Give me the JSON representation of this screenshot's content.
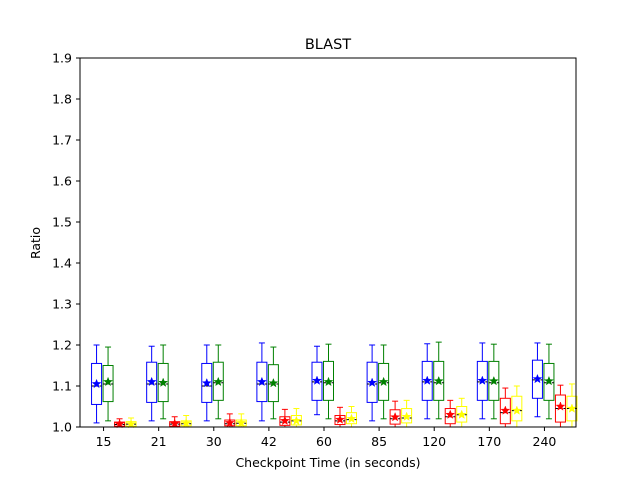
{
  "chart_data": {
    "type": "box",
    "title": "BLAST",
    "xlabel": "Checkpoint Time (in seconds)",
    "ylabel": "Ratio",
    "ylim": [
      1.0,
      1.9
    ],
    "yticks": [
      "1.0",
      "1.1",
      "1.2",
      "1.3",
      "1.4",
      "1.5",
      "1.6",
      "1.7",
      "1.8",
      "1.9"
    ],
    "categories": [
      "15",
      "21",
      "30",
      "42",
      "60",
      "85",
      "120",
      "170",
      "240"
    ],
    "grid": false,
    "legend": "none",
    "series": [
      {
        "color": "#0000ff",
        "boxes": [
          {
            "whislo": 1.01,
            "q1": 1.055,
            "med": 1.1,
            "mean": 1.105,
            "q3": 1.155,
            "whishi": 1.2
          },
          {
            "whislo": 1.015,
            "q1": 1.06,
            "med": 1.105,
            "mean": 1.11,
            "q3": 1.158,
            "whishi": 1.197
          },
          {
            "whislo": 1.015,
            "q1": 1.06,
            "med": 1.1,
            "mean": 1.107,
            "q3": 1.155,
            "whishi": 1.2
          },
          {
            "whislo": 1.015,
            "q1": 1.062,
            "med": 1.105,
            "mean": 1.11,
            "q3": 1.158,
            "whishi": 1.205
          },
          {
            "whislo": 1.03,
            "q1": 1.065,
            "med": 1.11,
            "mean": 1.113,
            "q3": 1.158,
            "whishi": 1.197
          },
          {
            "whislo": 1.015,
            "q1": 1.06,
            "med": 1.105,
            "mean": 1.108,
            "q3": 1.158,
            "whishi": 1.2
          },
          {
            "whislo": 1.02,
            "q1": 1.065,
            "med": 1.11,
            "mean": 1.113,
            "q3": 1.16,
            "whishi": 1.203
          },
          {
            "whislo": 1.02,
            "q1": 1.065,
            "med": 1.11,
            "mean": 1.113,
            "q3": 1.16,
            "whishi": 1.205
          },
          {
            "whislo": 1.025,
            "q1": 1.07,
            "med": 1.115,
            "mean": 1.117,
            "q3": 1.163,
            "whishi": 1.205
          }
        ]
      },
      {
        "color": "#008000",
        "boxes": [
          {
            "whislo": 1.015,
            "q1": 1.062,
            "med": 1.105,
            "mean": 1.11,
            "q3": 1.15,
            "whishi": 1.195
          },
          {
            "whislo": 1.02,
            "q1": 1.062,
            "med": 1.105,
            "mean": 1.108,
            "q3": 1.155,
            "whishi": 1.2
          },
          {
            "whislo": 1.02,
            "q1": 1.065,
            "med": 1.108,
            "mean": 1.11,
            "q3": 1.158,
            "whishi": 1.2
          },
          {
            "whislo": 1.02,
            "q1": 1.062,
            "med": 1.105,
            "mean": 1.107,
            "q3": 1.152,
            "whishi": 1.195
          },
          {
            "whislo": 1.02,
            "q1": 1.065,
            "med": 1.108,
            "mean": 1.11,
            "q3": 1.16,
            "whishi": 1.202
          },
          {
            "whislo": 1.02,
            "q1": 1.065,
            "med": 1.108,
            "mean": 1.11,
            "q3": 1.155,
            "whishi": 1.2
          },
          {
            "whislo": 1.02,
            "q1": 1.065,
            "med": 1.108,
            "mean": 1.112,
            "q3": 1.16,
            "whishi": 1.207
          },
          {
            "whislo": 1.02,
            "q1": 1.065,
            "med": 1.108,
            "mean": 1.112,
            "q3": 1.16,
            "whishi": 1.202
          },
          {
            "whislo": 1.02,
            "q1": 1.065,
            "med": 1.108,
            "mean": 1.112,
            "q3": 1.155,
            "whishi": 1.202
          }
        ]
      },
      {
        "color": "#ff0000",
        "boxes": [
          {
            "whislo": 1.0,
            "q1": 1.002,
            "med": 1.006,
            "mean": 1.007,
            "q3": 1.012,
            "whishi": 1.02
          },
          {
            "whislo": 1.0,
            "q1": 1.002,
            "med": 1.007,
            "mean": 1.008,
            "q3": 1.013,
            "whishi": 1.025
          },
          {
            "whislo": 1.0,
            "q1": 1.003,
            "med": 1.008,
            "mean": 1.01,
            "q3": 1.017,
            "whishi": 1.032
          },
          {
            "whislo": 1.0,
            "q1": 1.004,
            "med": 1.012,
            "mean": 1.015,
            "q3": 1.025,
            "whishi": 1.043
          },
          {
            "whislo": 1.0,
            "q1": 1.006,
            "med": 1.015,
            "mean": 1.018,
            "q3": 1.028,
            "whishi": 1.048
          },
          {
            "whislo": 1.0,
            "q1": 1.007,
            "med": 1.02,
            "mean": 1.024,
            "q3": 1.042,
            "whishi": 1.063
          },
          {
            "whislo": 1.0,
            "q1": 1.008,
            "med": 1.025,
            "mean": 1.03,
            "q3": 1.045,
            "whishi": 1.065
          },
          {
            "whislo": 1.0,
            "q1": 1.008,
            "med": 1.035,
            "mean": 1.04,
            "q3": 1.07,
            "whishi": 1.095
          },
          {
            "whislo": 1.0,
            "q1": 1.012,
            "med": 1.045,
            "mean": 1.05,
            "q3": 1.078,
            "whishi": 1.102
          }
        ]
      },
      {
        "color": "#ffff00",
        "boxes": [
          {
            "whislo": 1.0,
            "q1": 1.002,
            "med": 1.007,
            "mean": 1.007,
            "q3": 1.013,
            "whishi": 1.022
          },
          {
            "whislo": 1.0,
            "q1": 1.003,
            "med": 1.008,
            "mean": 1.009,
            "q3": 1.015,
            "whishi": 1.028
          },
          {
            "whislo": 1.0,
            "q1": 1.003,
            "med": 1.009,
            "mean": 1.01,
            "q3": 1.017,
            "whishi": 1.032
          },
          {
            "whislo": 1.0,
            "q1": 1.005,
            "med": 1.015,
            "mean": 1.015,
            "q3": 1.028,
            "whishi": 1.045
          },
          {
            "whislo": 1.0,
            "q1": 1.008,
            "med": 1.018,
            "mean": 1.02,
            "q3": 1.035,
            "whishi": 1.05
          },
          {
            "whislo": 1.0,
            "q1": 1.01,
            "med": 1.022,
            "mean": 1.025,
            "q3": 1.045,
            "whishi": 1.065
          },
          {
            "whislo": 1.0,
            "q1": 1.012,
            "med": 1.03,
            "mean": 1.03,
            "q3": 1.05,
            "whishi": 1.07
          },
          {
            "whislo": 1.0,
            "q1": 1.015,
            "med": 1.04,
            "mean": 1.04,
            "q3": 1.075,
            "whishi": 1.1
          },
          {
            "whislo": 1.0,
            "q1": 1.015,
            "med": 1.045,
            "mean": 1.045,
            "q3": 1.075,
            "whishi": 1.105
          }
        ]
      }
    ]
  }
}
